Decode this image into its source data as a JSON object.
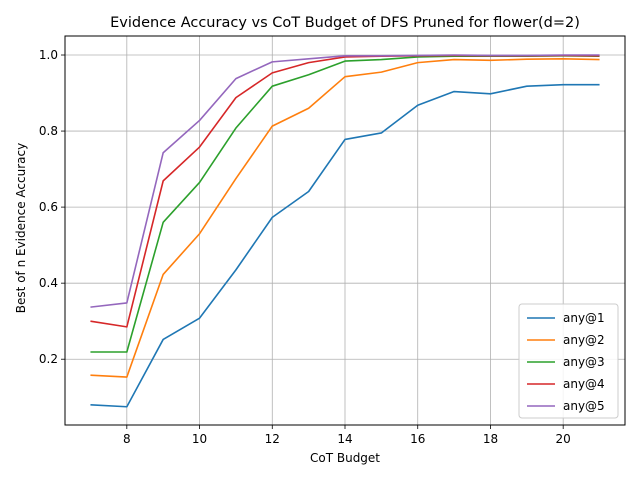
{
  "chart_data": {
    "type": "line",
    "title": "Evidence Accuracy vs CoT Budget of DFS Pruned for flower(d=2)",
    "xlabel": "CoT Budget",
    "ylabel": "Best of n Evidence Accuracy",
    "xlim": [
      6.3,
      21.7
    ],
    "ylim": [
      0.027,
      1.05
    ],
    "xticks": [
      8,
      10,
      12,
      14,
      16,
      18,
      20
    ],
    "yticks": [
      0.2,
      0.4,
      0.6,
      0.8,
      1.0
    ],
    "ytick_labels": [
      "0.2",
      "0.4",
      "0.6",
      "0.8",
      "1.0"
    ],
    "grid": true,
    "legend_position": "lower-right",
    "x": [
      7,
      8,
      9,
      10,
      11,
      12,
      13,
      14,
      15,
      16,
      17,
      18,
      19,
      20,
      21
    ],
    "series": [
      {
        "name": "any@1",
        "color": "#1f77b4",
        "values": [
          0.08,
          0.075,
          0.252,
          0.308,
          0.435,
          0.573,
          0.641,
          0.778,
          0.795,
          0.868,
          0.904,
          0.898,
          0.918,
          0.922,
          0.922
        ]
      },
      {
        "name": "any@2",
        "color": "#ff7f0e",
        "values": [
          0.158,
          0.153,
          0.423,
          0.53,
          0.675,
          0.813,
          0.86,
          0.943,
          0.955,
          0.98,
          0.988,
          0.986,
          0.989,
          0.99,
          0.988
        ]
      },
      {
        "name": "any@3",
        "color": "#2ca02c",
        "values": [
          0.219,
          0.219,
          0.56,
          0.665,
          0.808,
          0.918,
          0.948,
          0.984,
          0.988,
          0.995,
          0.997,
          0.997,
          0.997,
          0.998,
          0.997
        ]
      },
      {
        "name": "any@4",
        "color": "#d62728",
        "values": [
          0.3,
          0.285,
          0.669,
          0.758,
          0.888,
          0.953,
          0.98,
          0.995,
          0.997,
          0.998,
          0.999,
          0.998,
          0.998,
          0.999,
          0.998
        ]
      },
      {
        "name": "any@5",
        "color": "#9467bd",
        "values": [
          0.337,
          0.348,
          0.743,
          0.828,
          0.938,
          0.982,
          0.99,
          0.998,
          0.998,
          0.999,
          1.0,
          0.999,
          0.999,
          1.0,
          1.0
        ]
      }
    ]
  }
}
